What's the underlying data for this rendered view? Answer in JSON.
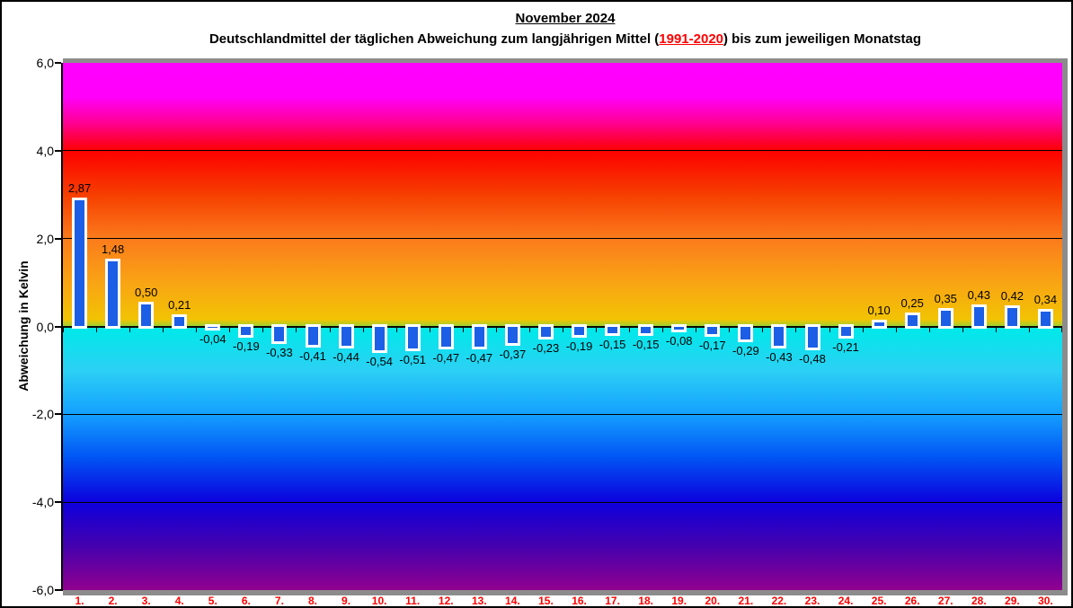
{
  "title": {
    "line1": "November 2024",
    "line2_part1": "Deutschlandmittel der täglichen Abweichung zum langjährigen Mittel (",
    "line2_highlight": "1991-2020",
    "line2_part2": ") bis zum jeweiligen Monatstag"
  },
  "y_axis": {
    "label": "Abweichung in Kelvin",
    "tick_labels": [
      "6,0",
      "4,0",
      "2,0",
      "0,0",
      "-2,0",
      "-4,0",
      "-6,0"
    ],
    "tick_values": [
      6,
      4,
      2,
      0,
      -2,
      -4,
      -6
    ],
    "gridline_values": [
      4,
      2,
      -2,
      -4
    ]
  },
  "chart_data": {
    "type": "bar",
    "title": "November 2024 — Deutschlandmittel der täglichen Abweichung zum langjährigen Mittel (1991-2020) bis zum jeweiligen Monatstag",
    "categories": [
      "1.",
      "2.",
      "3.",
      "4.",
      "5.",
      "6.",
      "7.",
      "8.",
      "9.",
      "10.",
      "11.",
      "12.",
      "13.",
      "14.",
      "15.",
      "16.",
      "17.",
      "18.",
      "19.",
      "20.",
      "21.",
      "22.",
      "23.",
      "24.",
      "25.",
      "26.",
      "27.",
      "28.",
      "29.",
      "30."
    ],
    "values": [
      2.87,
      1.48,
      0.5,
      0.21,
      -0.04,
      -0.19,
      -0.33,
      -0.41,
      -0.44,
      -0.54,
      -0.51,
      -0.47,
      -0.47,
      -0.37,
      -0.23,
      -0.19,
      -0.15,
      -0.15,
      -0.08,
      -0.17,
      -0.29,
      -0.43,
      -0.48,
      -0.21,
      0.1,
      0.25,
      0.35,
      0.43,
      0.42,
      0.34
    ],
    "value_labels": [
      "2,87",
      "1,48",
      "0,50",
      "0,21",
      "-0,04",
      "-0,19",
      "-0,33",
      "-0,41",
      "-0,44",
      "-0,54",
      "-0,51",
      "-0,47",
      "-0,47",
      "-0,37",
      "-0,23",
      "-0,19",
      "-0,15",
      "-0,15",
      "-0,08",
      "-0,17",
      "-0,29",
      "-0,43",
      "-0,48",
      "-0,21",
      "0,10",
      "0,25",
      "0,35",
      "0,43",
      "0,42",
      "0,34"
    ],
    "xlabel": "",
    "ylabel": "Abweichung in Kelvin",
    "ylim": [
      -6,
      6
    ],
    "grid": true,
    "legend": "none"
  },
  "colors": {
    "bar_fill": "#1c5fe6",
    "bar_border": "#ffffff",
    "day_label": "#ff0000",
    "highlight_red": "#ff0000",
    "frame_gray": "#8c8c8c",
    "axis_black": "#000000",
    "gradient_stops": [
      {
        "pct": 0,
        "color": "#ff00ff"
      },
      {
        "pct": 6.5,
        "color": "#ff00fa"
      },
      {
        "pct": 11.5,
        "color": "#ff0090"
      },
      {
        "pct": 16.67,
        "color": "#fe0000"
      },
      {
        "pct": 25,
        "color": "#f63e00"
      },
      {
        "pct": 33.33,
        "color": "#fb7b1c"
      },
      {
        "pct": 41.7,
        "color": "#f9a414"
      },
      {
        "pct": 48.7,
        "color": "#f2c303"
      },
      {
        "pct": 49.8,
        "color": "#a8cf2a"
      },
      {
        "pct": 50.4,
        "color": "#00e9ea"
      },
      {
        "pct": 58.3,
        "color": "#2cd0f4"
      },
      {
        "pct": 66.67,
        "color": "#149fff"
      },
      {
        "pct": 75,
        "color": "#0153f4"
      },
      {
        "pct": 83.33,
        "color": "#0d00dd"
      },
      {
        "pct": 91.7,
        "color": "#4501ae"
      },
      {
        "pct": 100,
        "color": "#91008f"
      }
    ]
  }
}
